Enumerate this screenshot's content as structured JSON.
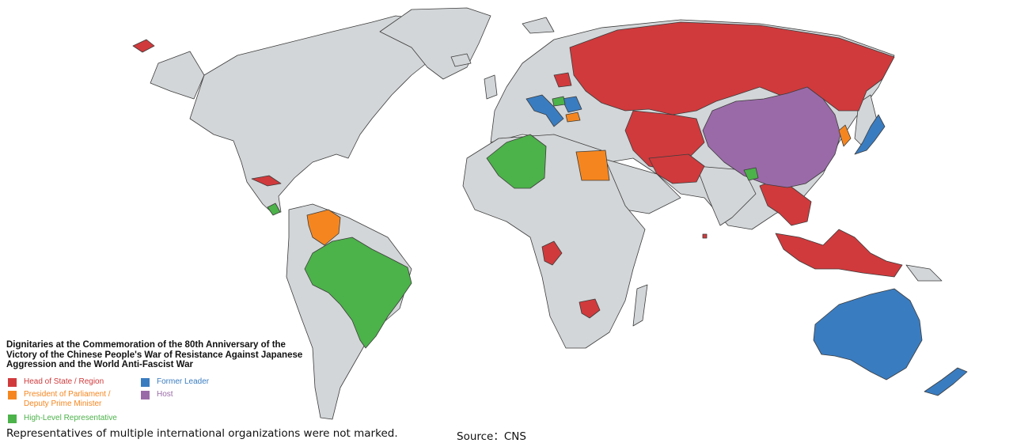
{
  "title": "Dignitaries at the Commemoration of the 80th Anniversary of the Victory of the Chinese People's War of Resistance Against Japanese Aggression and the World Anti-Fascist War",
  "legend": {
    "head_of_state": {
      "label": "Head of State / Region",
      "color": "#d03a3c"
    },
    "president_parliament": {
      "label": "President of Parliament / Deputy Prime Minister",
      "color": "#f5861f"
    },
    "high_level": {
      "label": "High-Level Representative",
      "color": "#4cb24a"
    },
    "former_leader": {
      "label": "Former Leader",
      "color": "#3a7cc0"
    },
    "host": {
      "label": "Host",
      "color": "#9a6aa8"
    }
  },
  "base_color": "#d3d6d8",
  "footnote": "Representatives of multiple international organizations were not marked.",
  "source": "Source：CNS"
}
